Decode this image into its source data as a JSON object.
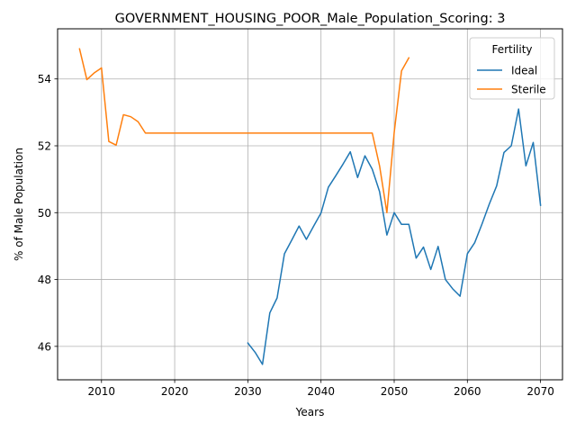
{
  "chart_data": {
    "type": "line",
    "title": "GOVERNMENT_HOUSING_POOR_Male_Population_Scoring: 3",
    "xlabel": "Years",
    "ylabel": "% of Male Population",
    "xlim": [
      2004,
      2073
    ],
    "ylim": [
      45.0,
      55.5
    ],
    "xticks": [
      2010,
      2020,
      2030,
      2040,
      2050,
      2060,
      2070
    ],
    "yticks": [
      46,
      48,
      50,
      52,
      54
    ],
    "grid": true,
    "legend": {
      "title": "Fertility",
      "placement": "top-right"
    },
    "series": [
      {
        "name": "Ideal",
        "color": "#1f77b4",
        "x": [
          2030,
          2031,
          2032,
          2033,
          2034,
          2035,
          2036,
          2037,
          2038,
          2039,
          2040,
          2041,
          2042,
          2043,
          2044,
          2045,
          2046,
          2047,
          2048,
          2049,
          2050,
          2051,
          2052,
          2053,
          2054,
          2055,
          2056,
          2057,
          2058,
          2059,
          2060,
          2061,
          2062,
          2063,
          2064,
          2065,
          2066,
          2067,
          2068,
          2069,
          2070
        ],
        "y": [
          46.1,
          45.82,
          45.46,
          47.0,
          47.45,
          48.77,
          49.18,
          49.6,
          49.2,
          49.6,
          49.99,
          50.76,
          51.1,
          51.45,
          51.82,
          51.05,
          51.7,
          51.3,
          50.63,
          49.33,
          50.0,
          49.65,
          49.65,
          48.64,
          48.97,
          48.3,
          48.99,
          48.0,
          47.72,
          47.5,
          48.77,
          49.1,
          49.66,
          50.26,
          50.8,
          51.8,
          52.0,
          53.1,
          51.4,
          52.1,
          50.22
        ]
      },
      {
        "name": "Sterile",
        "color": "#ff7f0e",
        "x": [
          2007,
          2008,
          2009,
          2010,
          2011,
          2012,
          2013,
          2014,
          2015,
          2016,
          2017,
          2018,
          2019,
          2020,
          2021,
          2022,
          2023,
          2024,
          2025,
          2026,
          2027,
          2028,
          2029,
          2030,
          2031,
          2032,
          2033,
          2034,
          2035,
          2036,
          2037,
          2038,
          2039,
          2040,
          2041,
          2042,
          2043,
          2044,
          2045,
          2046,
          2047,
          2048,
          2049,
          2050,
          2051,
          2052
        ],
        "y": [
          54.9,
          53.98,
          54.18,
          54.33,
          52.13,
          52.02,
          52.93,
          52.87,
          52.72,
          52.38,
          52.38,
          52.38,
          52.38,
          52.38,
          52.38,
          52.38,
          52.38,
          52.38,
          52.38,
          52.38,
          52.38,
          52.38,
          52.38,
          52.38,
          52.38,
          52.38,
          52.38,
          52.38,
          52.38,
          52.38,
          52.38,
          52.38,
          52.38,
          52.38,
          52.38,
          52.38,
          52.38,
          52.38,
          52.38,
          52.38,
          52.38,
          51.4,
          50.0,
          52.4,
          54.24,
          54.63
        ]
      }
    ]
  }
}
